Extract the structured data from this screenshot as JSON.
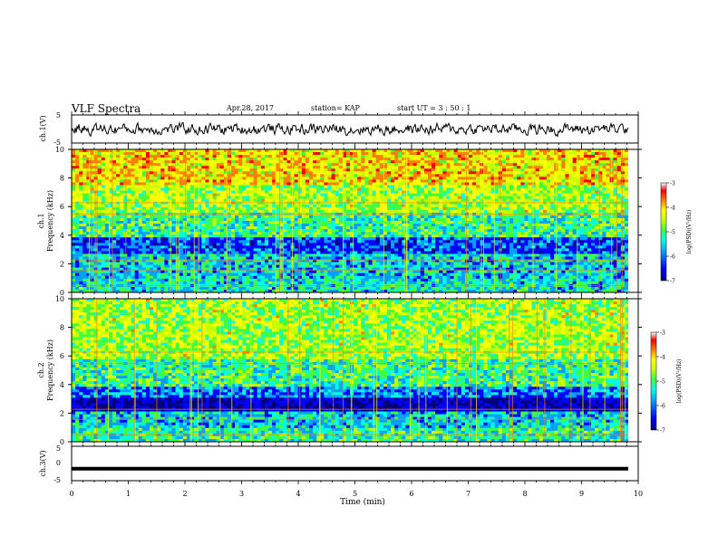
{
  "header": {
    "title": "VLF Spectra",
    "date": "Apr.28, 2017",
    "station": "station= KAP",
    "start": "start  UT  =   3  : 50 : 1"
  },
  "colors": {
    "spectrum_scale": [
      "#00007a",
      "#0000ff",
      "#00a0ff",
      "#00ffe0",
      "#40ff40",
      "#c8ff00",
      "#ffff00",
      "#ff8000",
      "#ff0000",
      "#ffffff"
    ],
    "waveform": "#000000"
  },
  "chart_data": [
    {
      "type": "line",
      "panel": "ch1-waveform",
      "ylabel": "ch.1(V)",
      "ylim": [
        -5,
        5
      ],
      "yticks": [
        "5",
        "-5"
      ],
      "xlim": [
        0,
        10
      ],
      "description_of_series": "noisy signal fluctuating roughly between -2 and 2 V"
    },
    {
      "type": "heatmap",
      "panel": "ch1-spectrogram",
      "ylabel": "ch.1\nFrequency (kHz)",
      "ylabel_ch": "ch.1",
      "ylabel_freq": "Frequency (kHz)",
      "ylim": [
        0,
        10
      ],
      "yticks": [
        "0",
        "2",
        "4",
        "6",
        "8",
        "10"
      ],
      "xlim": [
        0,
        10
      ],
      "colorbar": {
        "label": "log(PSD)(V²/Hz)",
        "range": [
          -7,
          -3
        ],
        "ticks": [
          "-3",
          "-4",
          "-5",
          "-6",
          "-7"
        ]
      },
      "bands_kHz": [
        {
          "from": 0,
          "to": 1,
          "log_psd": -5.2
        },
        {
          "from": 1,
          "to": 2.6,
          "log_psd": -5.3
        },
        {
          "from": 2.6,
          "to": 3.8,
          "log_psd": -5.9
        },
        {
          "from": 3.8,
          "to": 5.5,
          "log_psd": -4.9
        },
        {
          "from": 5.5,
          "to": 7.5,
          "log_psd": -4.4
        },
        {
          "from": 7.5,
          "to": 10,
          "log_psd": -3.9
        }
      ]
    },
    {
      "type": "heatmap",
      "panel": "ch2-spectrogram",
      "ylabel": "ch.2\nFrequency (kHz)",
      "ylabel_ch": "ch.2",
      "ylabel_freq": "Frequency (kHz)",
      "ylim": [
        0,
        10
      ],
      "yticks": [
        "0",
        "2",
        "4",
        "6",
        "8",
        "10"
      ],
      "xlim": [
        0,
        10
      ],
      "colorbar": {
        "label": "log(PSD)(V²/Hz)",
        "range": [
          -7,
          -3
        ],
        "ticks": [
          "-3",
          "-4",
          "-5",
          "-6",
          "-7"
        ]
      },
      "bands_kHz": [
        {
          "from": 0,
          "to": 1,
          "log_psd": -5.0
        },
        {
          "from": 1,
          "to": 2.2,
          "log_psd": -5.3
        },
        {
          "from": 2.2,
          "to": 3.0,
          "log_psd": -6.5
        },
        {
          "from": 3.0,
          "to": 3.8,
          "log_psd": -5.7
        },
        {
          "from": 3.8,
          "to": 5.8,
          "log_psd": -4.9
        },
        {
          "from": 5.8,
          "to": 10,
          "log_psd": -4.4
        }
      ]
    },
    {
      "type": "line",
      "panel": "ch3-waveform",
      "ylabel": "ch.3(V)",
      "ylim": [
        -5,
        5
      ],
      "yticks": [
        "5",
        "0",
        "-5"
      ],
      "xlim": [
        0,
        10
      ],
      "values_constant": -1.5
    }
  ],
  "xaxis": {
    "label": "Time (min)",
    "ticks": [
      "0",
      "1",
      "2",
      "3",
      "4",
      "5",
      "6",
      "7",
      "8",
      "9",
      "10"
    ]
  }
}
